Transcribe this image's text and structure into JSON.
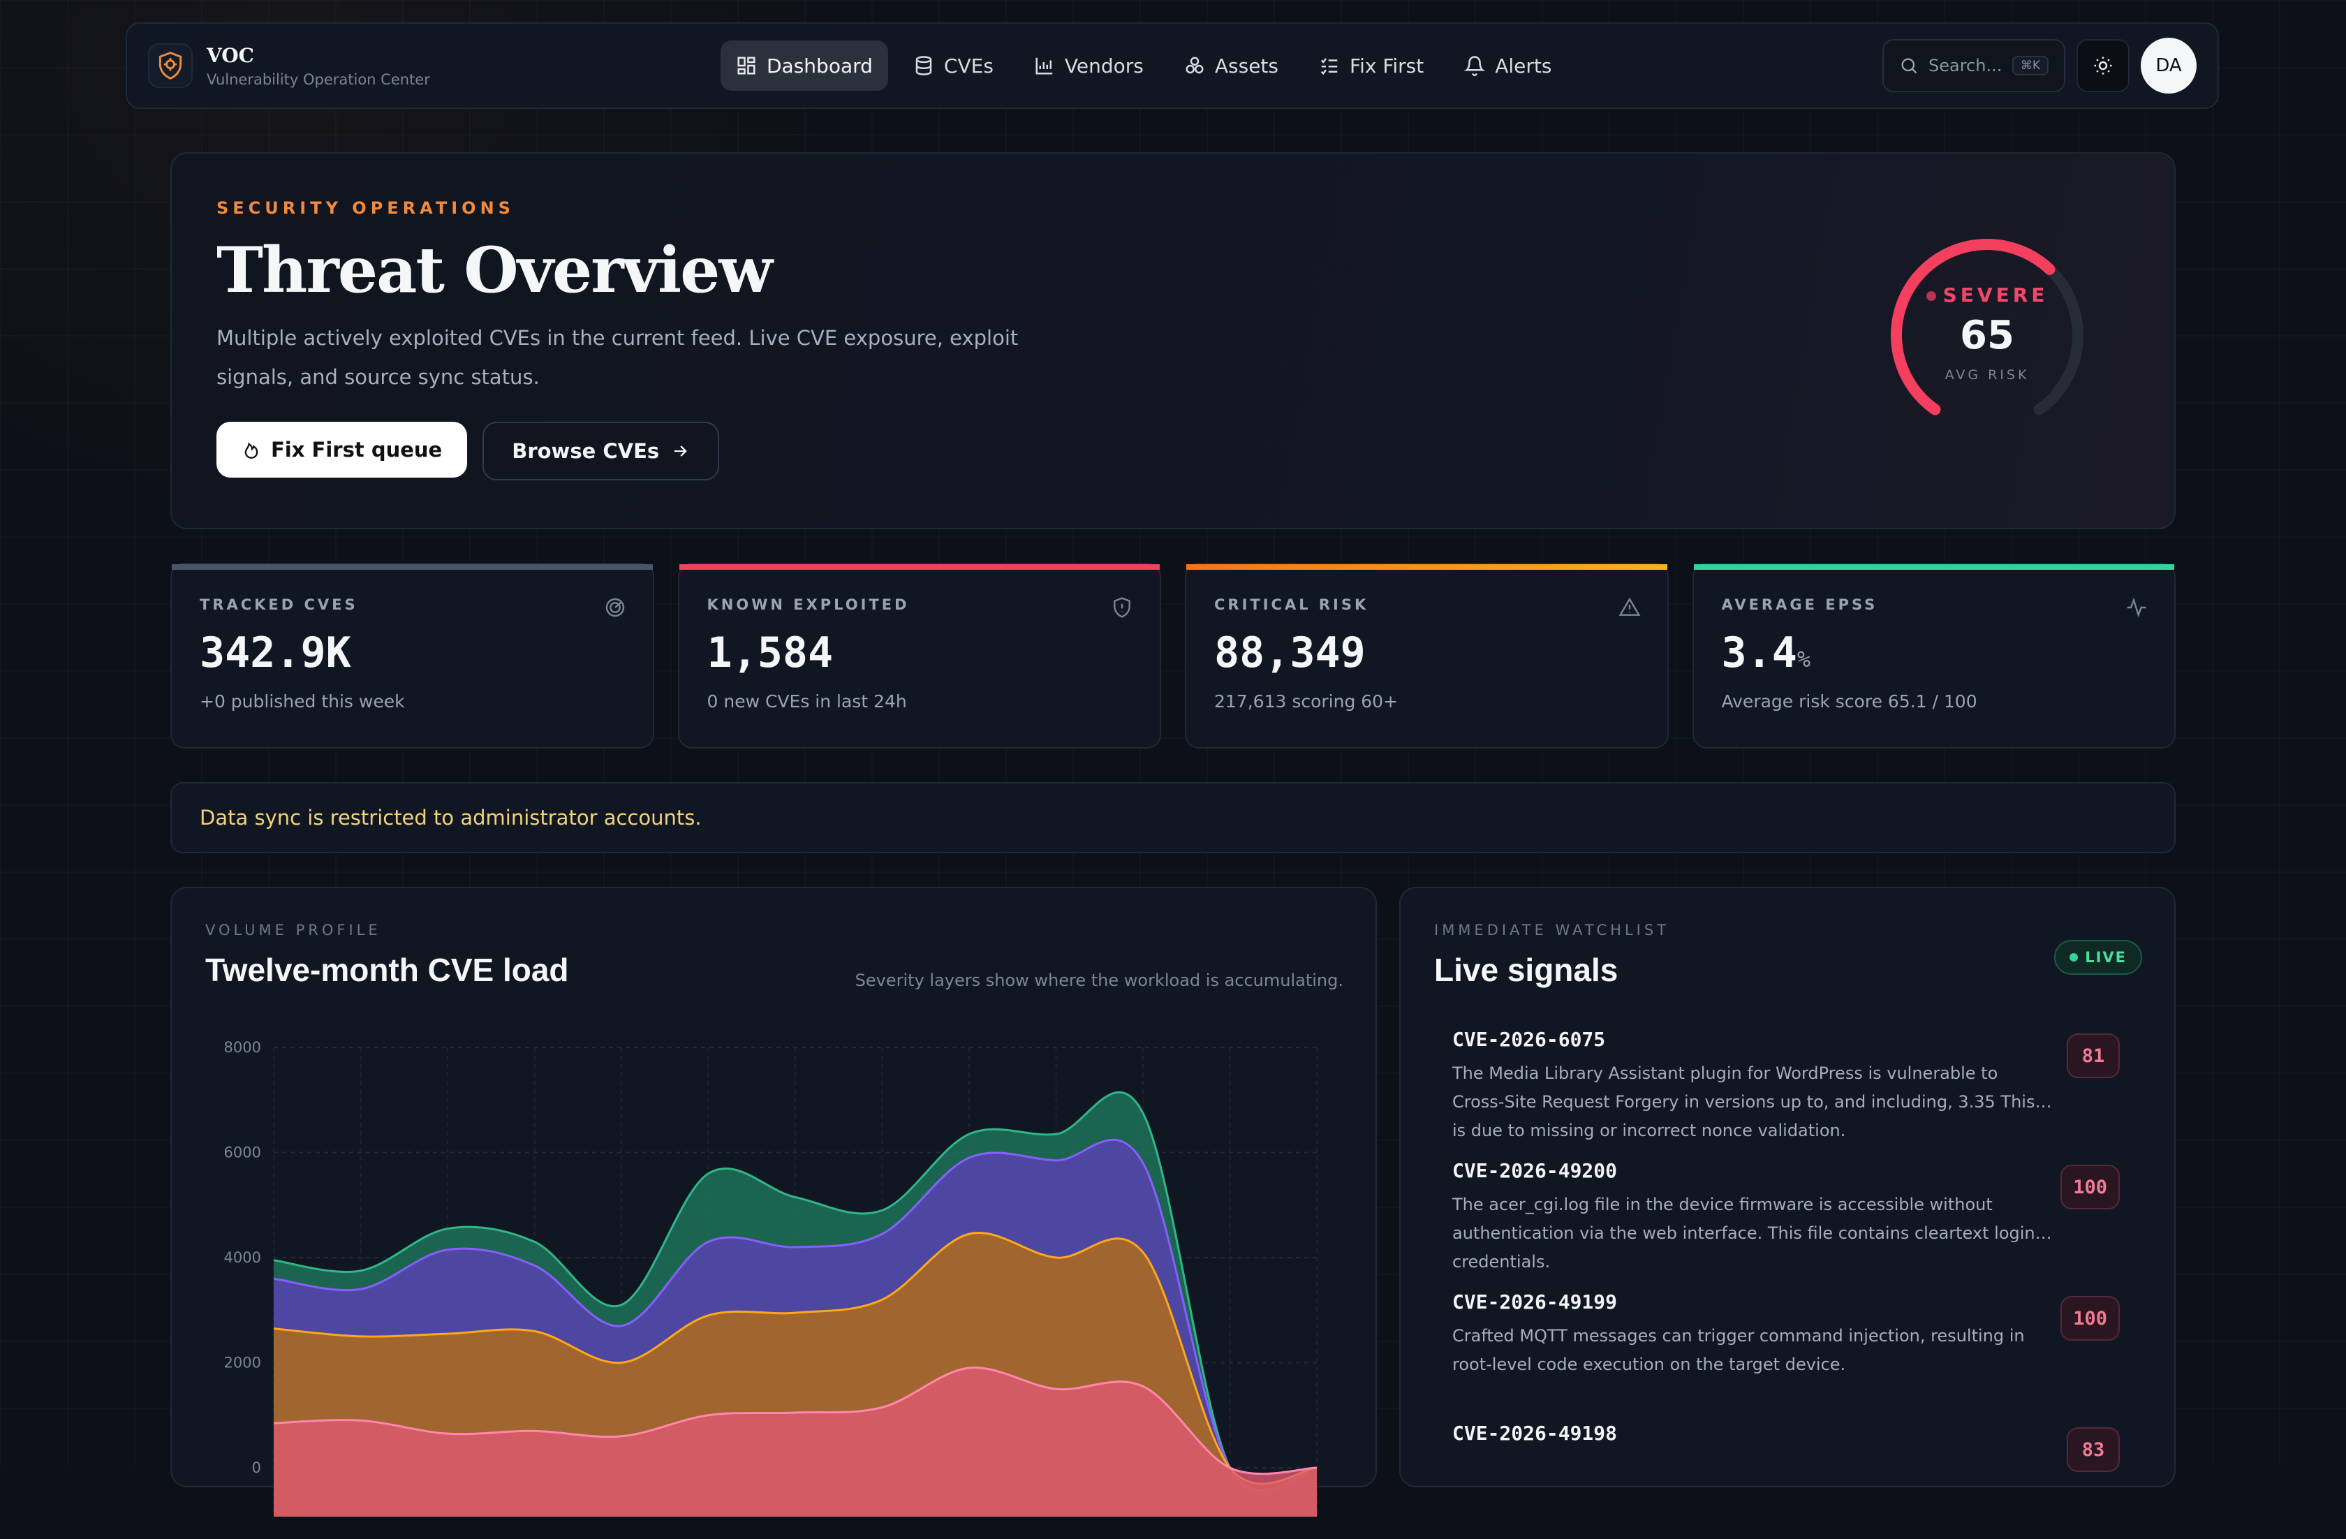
{
  "app": {
    "name": "VOC",
    "subtitle": "Vulnerability Operation Center"
  },
  "nav": {
    "items": [
      {
        "label": "Dashboard",
        "icon": "dashboard-icon",
        "active": true
      },
      {
        "label": "CVEs",
        "icon": "database-icon"
      },
      {
        "label": "Vendors",
        "icon": "chart-icon"
      },
      {
        "label": "Assets",
        "icon": "assets-icon"
      },
      {
        "label": "Fix First",
        "icon": "checklist-icon"
      },
      {
        "label": "Alerts",
        "icon": "bell-icon"
      }
    ],
    "search_placeholder": "Search...",
    "search_shortcut": "⌘K",
    "avatar_initials": "DA"
  },
  "hero": {
    "eyebrow": "SECURITY OPERATIONS",
    "title": "Threat Overview",
    "description": "Multiple actively exploited CVEs in the current feed. Live CVE exposure, exploit signals, and source sync status.",
    "primary_button": "Fix First queue",
    "secondary_button": "Browse CVEs",
    "gauge": {
      "level": "SEVERE",
      "value": "65",
      "label": "AVG RISK",
      "fraction": 0.65,
      "color": "#f43f5e"
    }
  },
  "stats": [
    {
      "label": "TRACKED CVES",
      "value": "342.9K",
      "unit": "",
      "sub": "+0 published this week",
      "accent": "#4b5568",
      "icon": "radar-icon"
    },
    {
      "label": "KNOWN EXPLOITED",
      "value": "1,584",
      "unit": "",
      "sub": "0 new CVEs in last 24h",
      "accent": "#f43f5e",
      "icon": "shield-icon"
    },
    {
      "label": "CRITICAL RISK",
      "value": "88,349",
      "unit": "",
      "sub": "217,613 scoring 60+",
      "accent": "#f59e0b",
      "icon": "warning-icon"
    },
    {
      "label": "AVERAGE EPSS",
      "value": "3.4",
      "unit": "%",
      "sub": "Average risk score 65.1 / 100",
      "accent": "#34d399",
      "icon": "pulse-icon"
    }
  ],
  "notice": "Data sync is restricted to administrator accounts.",
  "volume": {
    "eyebrow": "VOLUME PROFILE",
    "title": "Twelve-month CVE load",
    "note": "Severity layers show where the workload is accumulating."
  },
  "chart_data": {
    "type": "area",
    "stacked": true,
    "title": "Twelve-month CVE load",
    "ylim": [
      0,
      8000
    ],
    "yticks": [
      0,
      2000,
      4000,
      6000,
      8000
    ],
    "grid": true,
    "x": [
      1,
      2,
      3,
      4,
      5,
      6,
      7,
      8,
      9,
      10,
      11,
      12,
      13
    ],
    "series": [
      {
        "color": "#e15a73",
        "values": [
          850,
          900,
          650,
          700,
          600,
          1000,
          1050,
          1150,
          1900,
          1500,
          1550,
          0,
          0
        ]
      },
      {
        "color": "#b8700f",
        "values": [
          1800,
          1600,
          1900,
          1900,
          1400,
          1900,
          1900,
          2050,
          2550,
          2500,
          2550,
          0,
          0
        ]
      },
      {
        "color": "#5b3fb8",
        "values": [
          950,
          900,
          1600,
          1250,
          700,
          1400,
          1250,
          1250,
          1450,
          1850,
          1700,
          0,
          0
        ]
      },
      {
        "color": "#1f7a5c",
        "values": [
          350,
          350,
          400,
          450,
          400,
          1300,
          950,
          450,
          450,
          500,
          950,
          0,
          0
        ]
      }
    ]
  },
  "signals": {
    "eyebrow": "IMMEDIATE WATCHLIST",
    "title": "Live signals",
    "badge": "LIVE",
    "items": [
      {
        "id": "CVE-2026-6075",
        "desc": "The Media Library Assistant plugin for WordPress is vulnerable to Cross-Site Request Forgery in versions up to, and including, 3.35 This is due to missing or incorrect nonce validation.",
        "score": "81"
      },
      {
        "id": "CVE-2026-49200",
        "desc": "The acer_cgi.log file in the device firmware is accessible without authentication via the web interface. This file contains cleartext login credentials.",
        "score": "100"
      },
      {
        "id": "CVE-2026-49199",
        "desc": "Crafted MQTT messages can trigger command injection, resulting in root-level code execution on the target device.",
        "score": "100"
      },
      {
        "id": "CVE-2026-49198",
        "desc": "",
        "score": "83"
      }
    ]
  }
}
